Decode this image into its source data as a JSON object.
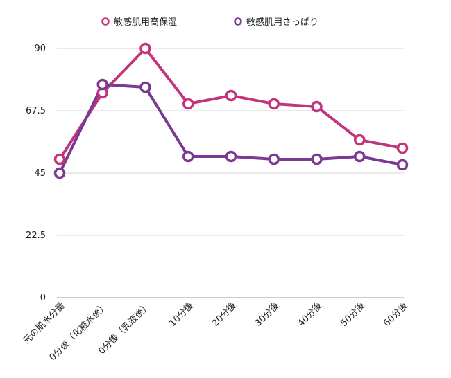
{
  "chart_data": {
    "type": "line",
    "categories": [
      "元の肌水分量",
      "0分後（化粧水後）",
      "0分後（乳液後）",
      "10分後",
      "20分後",
      "30分後",
      "40分後",
      "50分後",
      "60分後"
    ],
    "series": [
      {
        "name": "敏感肌用高保湿",
        "color": "#c2357c",
        "values": [
          50,
          74,
          90,
          70,
          73,
          70,
          69,
          57,
          54
        ]
      },
      {
        "name": "敏感肌用さっぱり",
        "color": "#7b3a91",
        "values": [
          45,
          77,
          76,
          51,
          51,
          50,
          50,
          51,
          48
        ]
      }
    ],
    "y_ticks": [
      "0",
      "22.5",
      "45",
      "67.5",
      "90"
    ],
    "ylim": [
      0,
      90
    ],
    "grid": true,
    "legend_position": "top"
  }
}
